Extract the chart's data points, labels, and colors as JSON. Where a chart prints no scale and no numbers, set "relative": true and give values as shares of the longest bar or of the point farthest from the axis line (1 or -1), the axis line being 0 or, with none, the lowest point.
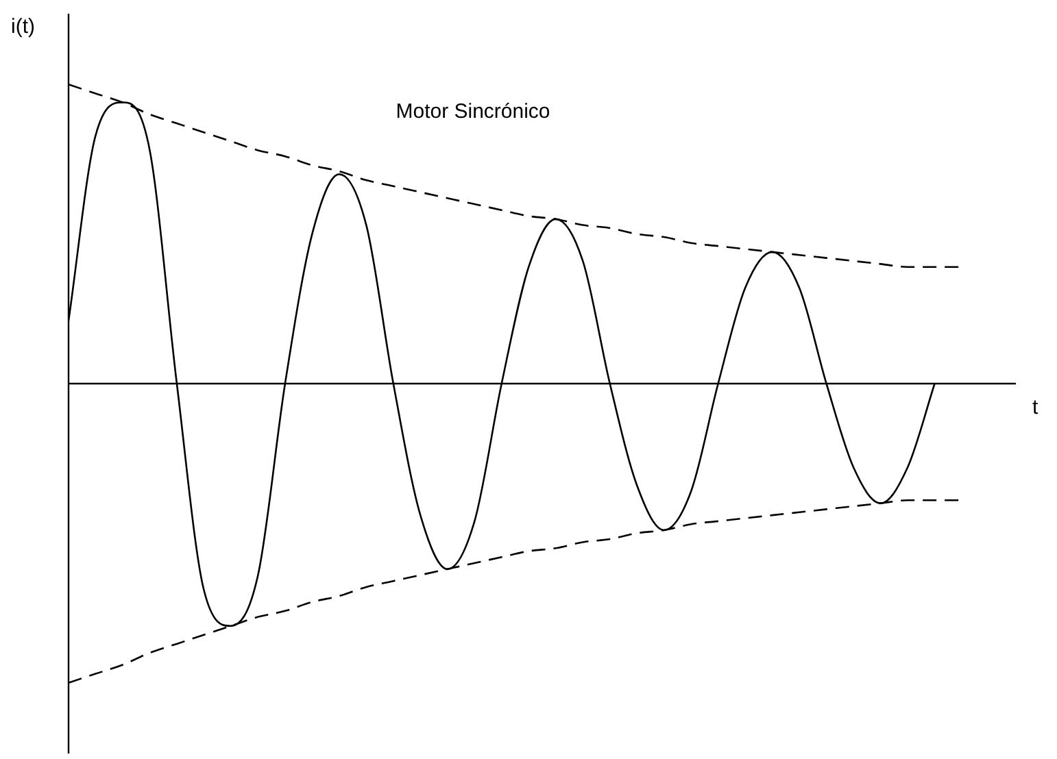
{
  "chart_data": {
    "type": "line",
    "relative": true,
    "title": "Motor Sincrónico",
    "xlabel": "t",
    "ylabel": "i(t)",
    "marker": "none",
    "categories": [
      null,
      null,
      null,
      null,
      null,
      null,
      null,
      null,
      null,
      null,
      null,
      null,
      null,
      null,
      null,
      null,
      null,
      null,
      null,
      null,
      null,
      null,
      null,
      null,
      null,
      null,
      null,
      null,
      null,
      null,
      null,
      null,
      null,
      null,
      null,
      null
    ],
    "series": [
      {
        "color": "#000000",
        "line_style": "solid",
        "values": [
          0.21,
          0.83,
          0.94,
          0.78,
          0,
          -0.69,
          -0.81,
          -0.64,
          0,
          0.5,
          0.7,
          0.53,
          0,
          -0.44,
          -0.62,
          -0.46,
          0,
          0.39,
          0.55,
          0.41,
          0,
          -0.34,
          -0.49,
          -0.36,
          0,
          0.32,
          0.44,
          0.32,
          0,
          -0.28,
          -0.4,
          -0.28,
          0,
          null,
          null,
          null
        ]
      },
      {
        "color": "#000000",
        "line_style": "dashed",
        "values": [
          1,
          0.97,
          0.94,
          0.9,
          0.87,
          0.84,
          0.81,
          0.78,
          0.76,
          0.73,
          0.71,
          0.68,
          0.66,
          0.64,
          0.62,
          0.6,
          0.58,
          0.56,
          0.55,
          0.53,
          0.52,
          0.5,
          0.49,
          0.47,
          0.46,
          0.45,
          0.44,
          0.43,
          0.42,
          0.41,
          0.4,
          0.39,
          0.39,
          0.39,
          null,
          null
        ]
      },
      {
        "color": "#000000",
        "line_style": "dashed",
        "values": [
          -1,
          -0.97,
          -0.94,
          -0.9,
          -0.87,
          -0.84,
          -0.81,
          -0.78,
          -0.76,
          -0.73,
          -0.71,
          -0.68,
          -0.66,
          -0.64,
          -0.62,
          -0.6,
          -0.58,
          -0.56,
          -0.55,
          -0.53,
          -0.52,
          -0.5,
          -0.49,
          -0.47,
          -0.46,
          -0.45,
          -0.44,
          -0.43,
          -0.42,
          -0.41,
          -0.4,
          -0.39,
          -0.39,
          -0.39,
          null,
          null
        ]
      }
    ]
  }
}
